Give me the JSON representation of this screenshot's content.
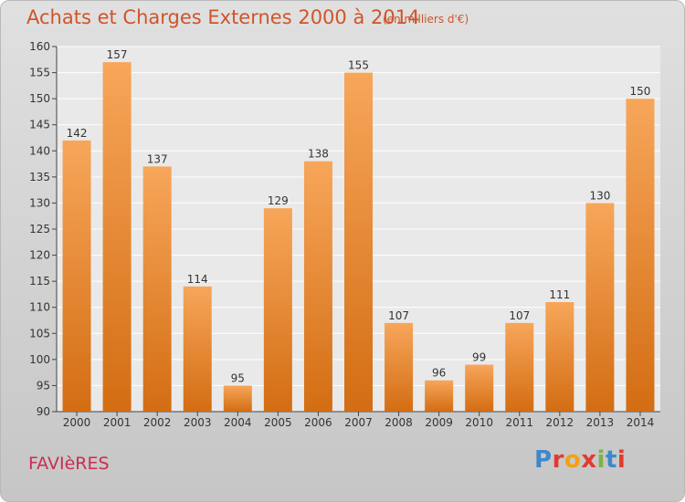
{
  "title": "Achats et Charges Externes 2000 à 2014",
  "subtitle": "(en milliers d'€)",
  "commune": "FAVIèRES",
  "brand": {
    "letters": [
      "P",
      "r",
      "o",
      "x",
      "i",
      "t",
      "i"
    ],
    "colors": [
      "#3f88c9",
      "#e23b2e",
      "#f2a20f",
      "#e23b2e",
      "#7fb24a",
      "#3f88c9",
      "#e23b2e"
    ]
  },
  "colors": {
    "bar_top": "#f7a65a",
    "bar_bottom": "#d36d13",
    "title": "#d0542a",
    "commune": "#c92e52"
  },
  "chart_data": {
    "type": "bar",
    "title": "Achats et Charges Externes 2000 à 2014",
    "subtitle": "(en milliers d'€)",
    "xlabel": "",
    "ylabel": "",
    "categories": [
      "2000",
      "2001",
      "2002",
      "2003",
      "2004",
      "2005",
      "2006",
      "2007",
      "2008",
      "2009",
      "2010",
      "2011",
      "2012",
      "2013",
      "2014"
    ],
    "values": [
      142,
      157,
      137,
      114,
      95,
      129,
      138,
      155,
      107,
      96,
      99,
      107,
      111,
      130,
      150
    ],
    "ylim": [
      90,
      160
    ],
    "yticks": [
      90,
      95,
      100,
      105,
      110,
      115,
      120,
      125,
      130,
      135,
      140,
      145,
      150,
      155,
      160
    ],
    "grid": true,
    "legend": "none"
  }
}
